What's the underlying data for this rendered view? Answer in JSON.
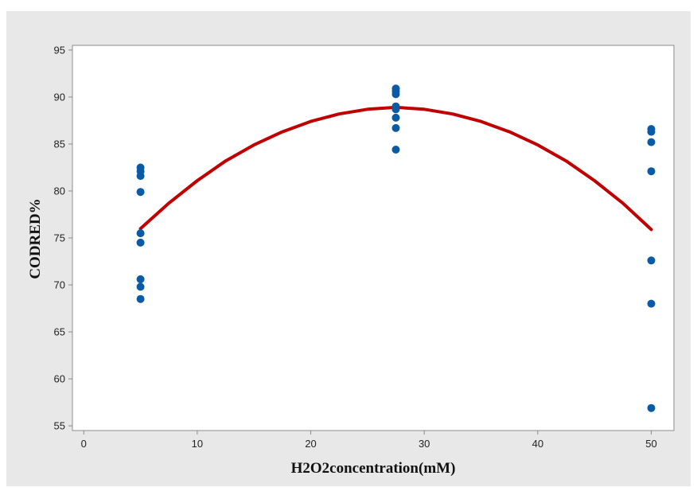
{
  "chart_data": {
    "type": "scatter",
    "title": "",
    "xlabel": "H2O2concentration(mM)",
    "ylabel": "CODRED%",
    "xlim": [
      -1,
      52
    ],
    "ylim": [
      54.5,
      95.5
    ],
    "x_ticks": [
      0,
      10,
      20,
      30,
      40,
      50
    ],
    "y_ticks": [
      55,
      60,
      65,
      70,
      75,
      80,
      85,
      90,
      95
    ],
    "grid": false,
    "legend": "none",
    "series": [
      {
        "type": "scatter",
        "color": "#0b5aa6",
        "points": [
          [
            5,
            82.5
          ],
          [
            5,
            82.1
          ],
          [
            5,
            81.6
          ],
          [
            5,
            79.9
          ],
          [
            5,
            75.5
          ],
          [
            5,
            74.5
          ],
          [
            5,
            70.6
          ],
          [
            5,
            69.8
          ],
          [
            5,
            68.5
          ],
          [
            27.5,
            90.9
          ],
          [
            27.5,
            90.6
          ],
          [
            27.5,
            90.3
          ],
          [
            27.5,
            89.0
          ],
          [
            27.5,
            88.7
          ],
          [
            27.5,
            87.8
          ],
          [
            27.5,
            86.7
          ],
          [
            27.5,
            84.4
          ],
          [
            50,
            86.6
          ],
          [
            50,
            86.3
          ],
          [
            50,
            85.2
          ],
          [
            50,
            82.1
          ],
          [
            50,
            72.6
          ],
          [
            50,
            68.0
          ],
          [
            50,
            56.9
          ]
        ]
      },
      {
        "type": "line",
        "color": "#c00000",
        "x": [
          5,
          7.5,
          10,
          12.5,
          15,
          17.5,
          20,
          22.5,
          25,
          27.5,
          30,
          32.5,
          35,
          37.5,
          40,
          42.5,
          45,
          47.5,
          50
        ],
        "values": [
          76.0,
          78.7,
          81.1,
          83.2,
          84.9,
          86.3,
          87.4,
          88.2,
          88.7,
          88.9,
          88.7,
          88.2,
          87.4,
          86.3,
          84.9,
          83.2,
          81.1,
          78.7,
          75.9
        ]
      }
    ]
  }
}
